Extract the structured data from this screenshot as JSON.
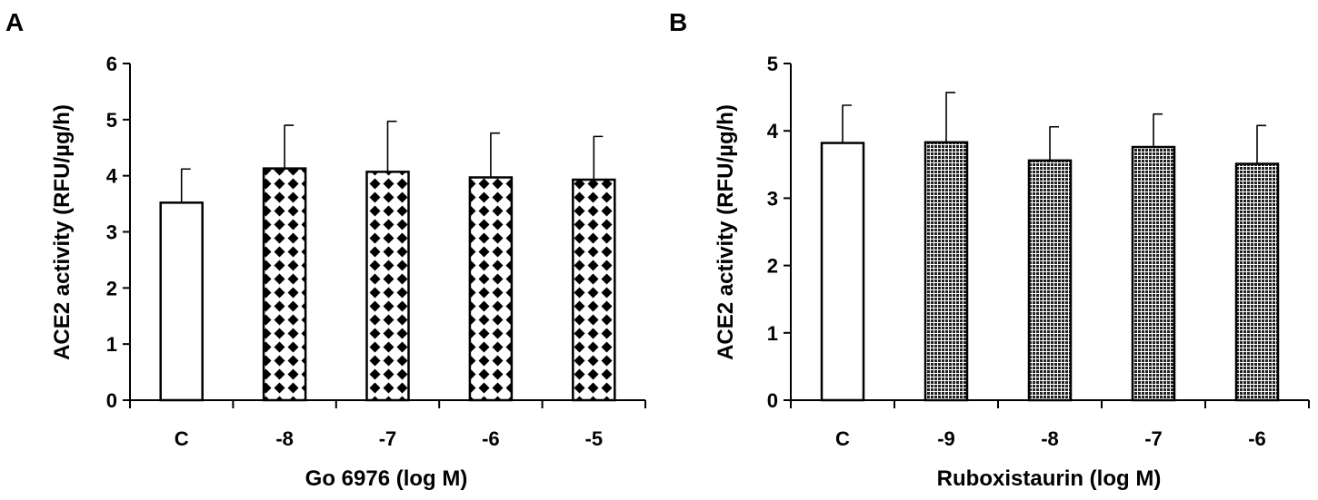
{
  "chart_data": [
    {
      "panel": "A",
      "type": "bar",
      "categories": [
        "C",
        "-8",
        "-7",
        "-6",
        "-5"
      ],
      "values": [
        3.52,
        4.13,
        4.07,
        3.97,
        3.93
      ],
      "errors": [
        0.6,
        0.77,
        0.9,
        0.79,
        0.77
      ],
      "fills": [
        "white",
        "diamond",
        "diamond",
        "diamond",
        "diamond"
      ],
      "xlabel": "Go 6976 (log M)",
      "ylabel": "ACE2 activity (RFU/µg/h)",
      "ylim": [
        0,
        6
      ],
      "yticks": [
        0,
        1,
        2,
        3,
        4,
        5,
        6
      ],
      "grid": false,
      "legend": "none"
    },
    {
      "panel": "B",
      "type": "bar",
      "categories": [
        "C",
        "-9",
        "-8",
        "-7",
        "-6"
      ],
      "values": [
        3.82,
        3.83,
        3.56,
        3.76,
        3.51
      ],
      "errors": [
        0.56,
        0.74,
        0.5,
        0.49,
        0.57
      ],
      "fills": [
        "white",
        "dots",
        "dots",
        "dots",
        "dots"
      ],
      "xlabel": "Ruboxistaurin (log M)",
      "ylabel": "ACE2 activity (RFU/µg/h)",
      "ylim": [
        0,
        5
      ],
      "yticks": [
        0,
        1,
        2,
        3,
        4,
        5
      ],
      "grid": false,
      "legend": "none"
    }
  ]
}
